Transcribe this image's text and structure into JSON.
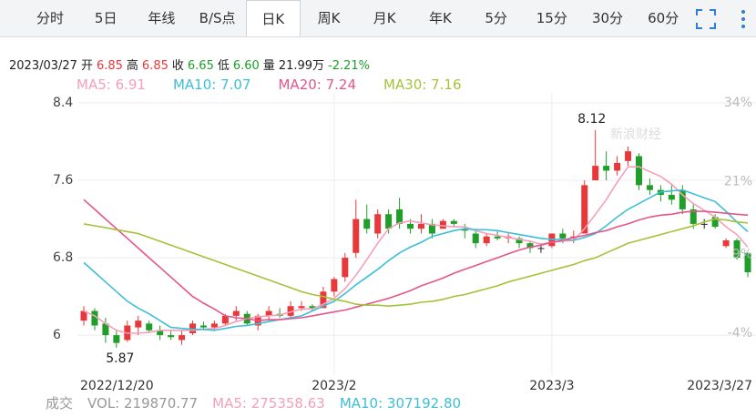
{
  "tabs": {
    "items": [
      "分时",
      "5日",
      "年线",
      "B/S点",
      "日K",
      "周K",
      "月K",
      "年K",
      "5分",
      "15分",
      "30分",
      "60分"
    ],
    "active": 4
  },
  "quote": {
    "date": "2023/03/27",
    "fields": [
      {
        "label": "开",
        "value": "6.85",
        "color": "#e8393a"
      },
      {
        "label": "高",
        "value": "6.85",
        "color": "#e8393a"
      },
      {
        "label": "收",
        "value": "6.65",
        "color": "#1f9e2a"
      },
      {
        "label": "低",
        "value": "6.60",
        "color": "#1f9e2a"
      },
      {
        "label": "量",
        "value": "21.99万",
        "color": "#222222"
      }
    ],
    "change": {
      "value": "-2.21%",
      "color": "#1f9e2a"
    }
  },
  "chart_data": {
    "type": "candlestick",
    "categories": [
      "2022/12/20",
      null,
      null,
      null,
      null,
      null,
      null,
      null,
      null,
      null,
      null,
      null,
      null,
      null,
      null,
      null,
      null,
      null,
      null,
      null,
      null,
      null,
      null,
      "2023/2",
      null,
      null,
      null,
      null,
      null,
      null,
      null,
      null,
      null,
      null,
      null,
      null,
      null,
      null,
      null,
      null,
      null,
      null,
      null,
      "2023/3",
      null,
      null,
      null,
      null,
      null,
      null,
      null,
      null,
      null,
      null,
      null,
      null,
      null,
      null,
      null,
      null,
      null,
      "2023/3/27"
    ],
    "open": [
      6.15,
      6.25,
      6.12,
      6.0,
      5.95,
      6.08,
      6.12,
      6.05,
      6.0,
      5.95,
      6.02,
      6.1,
      6.08,
      6.12,
      6.2,
      6.22,
      6.1,
      6.2,
      6.22,
      6.2,
      6.28,
      6.3,
      6.28,
      6.45,
      6.6,
      6.85,
      7.2,
      7.05,
      7.25,
      7.3,
      7.15,
      7.1,
      7.15,
      7.1,
      7.18,
      7.1,
      7.05,
      6.95,
      7.02,
      7.0,
      7.0,
      6.95,
      6.9,
      6.92,
      7.05,
      7.0,
      7.05,
      7.6,
      7.75,
      7.7,
      7.8,
      7.85,
      7.55,
      7.5,
      7.45,
      7.5,
      7.3,
      7.15,
      7.22,
      6.92,
      6.98,
      6.85
    ],
    "high": [
      6.3,
      6.28,
      6.18,
      6.05,
      6.15,
      6.2,
      6.15,
      6.1,
      6.05,
      6.05,
      6.15,
      6.14,
      6.15,
      6.22,
      6.3,
      6.25,
      6.22,
      6.3,
      6.28,
      6.35,
      6.35,
      6.32,
      6.5,
      6.6,
      6.85,
      7.4,
      7.35,
      7.3,
      7.3,
      7.42,
      7.2,
      7.25,
      7.2,
      7.2,
      7.2,
      7.15,
      7.1,
      7.05,
      7.08,
      7.05,
      7.02,
      6.98,
      6.95,
      7.05,
      7.1,
      7.08,
      7.6,
      8.12,
      7.9,
      7.85,
      7.95,
      7.88,
      7.62,
      7.55,
      7.55,
      7.55,
      7.35,
      7.2,
      7.25,
      7.0,
      7.0,
      6.85
    ],
    "low": [
      6.1,
      6.05,
      5.92,
      5.87,
      5.93,
      6.0,
      6.02,
      5.95,
      5.95,
      5.9,
      6.0,
      6.05,
      6.05,
      6.1,
      6.15,
      6.1,
      6.05,
      6.15,
      6.18,
      6.18,
      6.25,
      6.25,
      6.28,
      6.4,
      6.55,
      6.8,
      7.05,
      7.0,
      7.05,
      7.1,
      7.05,
      7.05,
      7.0,
      7.1,
      7.12,
      7.0,
      6.9,
      6.92,
      6.98,
      6.95,
      6.9,
      6.85,
      6.85,
      6.9,
      6.95,
      6.95,
      7.05,
      7.6,
      7.6,
      7.65,
      7.75,
      7.5,
      7.45,
      7.38,
      7.35,
      7.25,
      7.1,
      7.1,
      7.1,
      6.9,
      6.78,
      6.6
    ],
    "close": [
      6.25,
      6.1,
      6.0,
      5.92,
      6.1,
      6.15,
      6.05,
      6.0,
      5.98,
      6.0,
      6.12,
      6.08,
      6.12,
      6.2,
      6.25,
      6.12,
      6.2,
      6.25,
      6.2,
      6.3,
      6.3,
      6.28,
      6.45,
      6.58,
      6.8,
      7.2,
      7.1,
      7.25,
      7.1,
      7.15,
      7.1,
      7.15,
      7.05,
      7.18,
      7.15,
      7.08,
      6.95,
      7.02,
      7.0,
      7.02,
      6.95,
      6.9,
      6.9,
      7.05,
      7.0,
      7.02,
      7.55,
      7.75,
      7.7,
      7.78,
      7.9,
      7.55,
      7.5,
      7.45,
      7.4,
      7.3,
      7.15,
      7.15,
      7.12,
      6.98,
      6.8,
      6.65
    ],
    "up_color": "#e8393a",
    "down_color": "#1f9e2a",
    "flat_color": "#222222",
    "series": [
      {
        "name": "MA5: 6.91",
        "color": "#f4a0b9",
        "values": [
          6.25,
          6.2,
          6.12,
          6.05,
          6.02,
          6.02,
          6.03,
          6.05,
          6.05,
          6.05,
          6.05,
          6.06,
          6.07,
          6.1,
          6.14,
          6.17,
          6.19,
          6.2,
          6.21,
          6.24,
          6.27,
          6.27,
          6.32,
          6.38,
          6.48,
          6.62,
          6.78,
          6.95,
          7.1,
          7.16,
          7.18,
          7.16,
          7.14,
          7.13,
          7.12,
          7.12,
          7.08,
          7.05,
          7.03,
          7.01,
          6.99,
          6.97,
          6.94,
          6.96,
          6.97,
          6.98,
          7.1,
          7.25,
          7.4,
          7.58,
          7.74,
          7.74,
          7.69,
          7.64,
          7.56,
          7.45,
          7.36,
          7.29,
          7.22,
          7.12,
          7.04,
          6.91
        ]
      },
      {
        "name": "MA10: 7.07",
        "color": "#3dbfd6",
        "values": [
          6.75,
          6.65,
          6.55,
          6.45,
          6.35,
          6.28,
          6.22,
          6.15,
          6.08,
          6.07,
          6.06,
          6.06,
          6.05,
          6.07,
          6.09,
          6.1,
          6.12,
          6.14,
          6.16,
          6.18,
          6.2,
          6.25,
          6.3,
          6.35,
          6.43,
          6.52,
          6.6,
          6.68,
          6.77,
          6.85,
          6.91,
          6.96,
          7.02,
          7.05,
          7.08,
          7.1,
          7.09,
          7.09,
          7.08,
          7.06,
          7.04,
          7.02,
          7.0,
          6.99,
          6.99,
          6.98,
          7.01,
          7.05,
          7.13,
          7.22,
          7.3,
          7.36,
          7.42,
          7.48,
          7.49,
          7.5,
          7.46,
          7.42,
          7.38,
          7.28,
          7.17,
          7.07
        ]
      },
      {
        "name": "MA20: 7.24",
        "color": "#e4568b",
        "values": [
          7.4,
          7.3,
          7.2,
          7.1,
          7.0,
          6.9,
          6.8,
          6.7,
          6.6,
          6.5,
          6.4,
          6.33,
          6.27,
          6.2,
          6.18,
          6.17,
          6.15,
          6.16,
          6.16,
          6.17,
          6.18,
          6.2,
          6.22,
          6.24,
          6.26,
          6.29,
          6.32,
          6.35,
          6.38,
          6.42,
          6.46,
          6.51,
          6.55,
          6.59,
          6.64,
          6.68,
          6.72,
          6.76,
          6.8,
          6.84,
          6.88,
          6.91,
          6.93,
          6.96,
          6.98,
          7.01,
          7.03,
          7.06,
          7.08,
          7.12,
          7.15,
          7.19,
          7.22,
          7.24,
          7.25,
          7.27,
          7.28,
          7.28,
          7.27,
          7.26,
          7.25,
          7.24
        ]
      },
      {
        "name": "MA30: 7.16",
        "color": "#a5c23a",
        "values": [
          7.15,
          7.13,
          7.11,
          7.09,
          7.07,
          7.05,
          7.01,
          6.97,
          6.93,
          6.89,
          6.85,
          6.81,
          6.77,
          6.73,
          6.69,
          6.65,
          6.61,
          6.57,
          6.53,
          6.49,
          6.45,
          6.42,
          6.4,
          6.37,
          6.35,
          6.32,
          6.31,
          6.31,
          6.3,
          6.31,
          6.32,
          6.34,
          6.35,
          6.37,
          6.4,
          6.42,
          6.45,
          6.48,
          6.51,
          6.55,
          6.58,
          6.61,
          6.64,
          6.67,
          6.7,
          6.73,
          6.77,
          6.8,
          6.85,
          6.9,
          6.95,
          6.98,
          7.01,
          7.04,
          7.07,
          7.1,
          7.13,
          7.17,
          7.2,
          7.19,
          7.17,
          7.16
        ]
      }
    ],
    "ylim": [
      5.7,
      8.5
    ],
    "yticks": [
      8.4,
      7.6,
      6.8,
      6
    ],
    "y2lim": [
      -9.1,
      35.6
    ],
    "y2ticks": [
      {
        "value": 34,
        "label": "34%"
      },
      {
        "value": 21,
        "label": "21%"
      },
      {
        "value": 9,
        "label": "9%"
      },
      {
        "value": -4,
        "label": "-4%"
      }
    ],
    "grid": true,
    "watermark": "新浪财经"
  },
  "volume_legend": {
    "title": "成交",
    "items": [
      {
        "text": "VOL: 219870.77",
        "color": "#999999"
      },
      {
        "text": "MA5: 275358.63",
        "color": "#f4a0b9"
      },
      {
        "text": "MA10: 307192.80",
        "color": "#3dbfd6"
      }
    ]
  }
}
